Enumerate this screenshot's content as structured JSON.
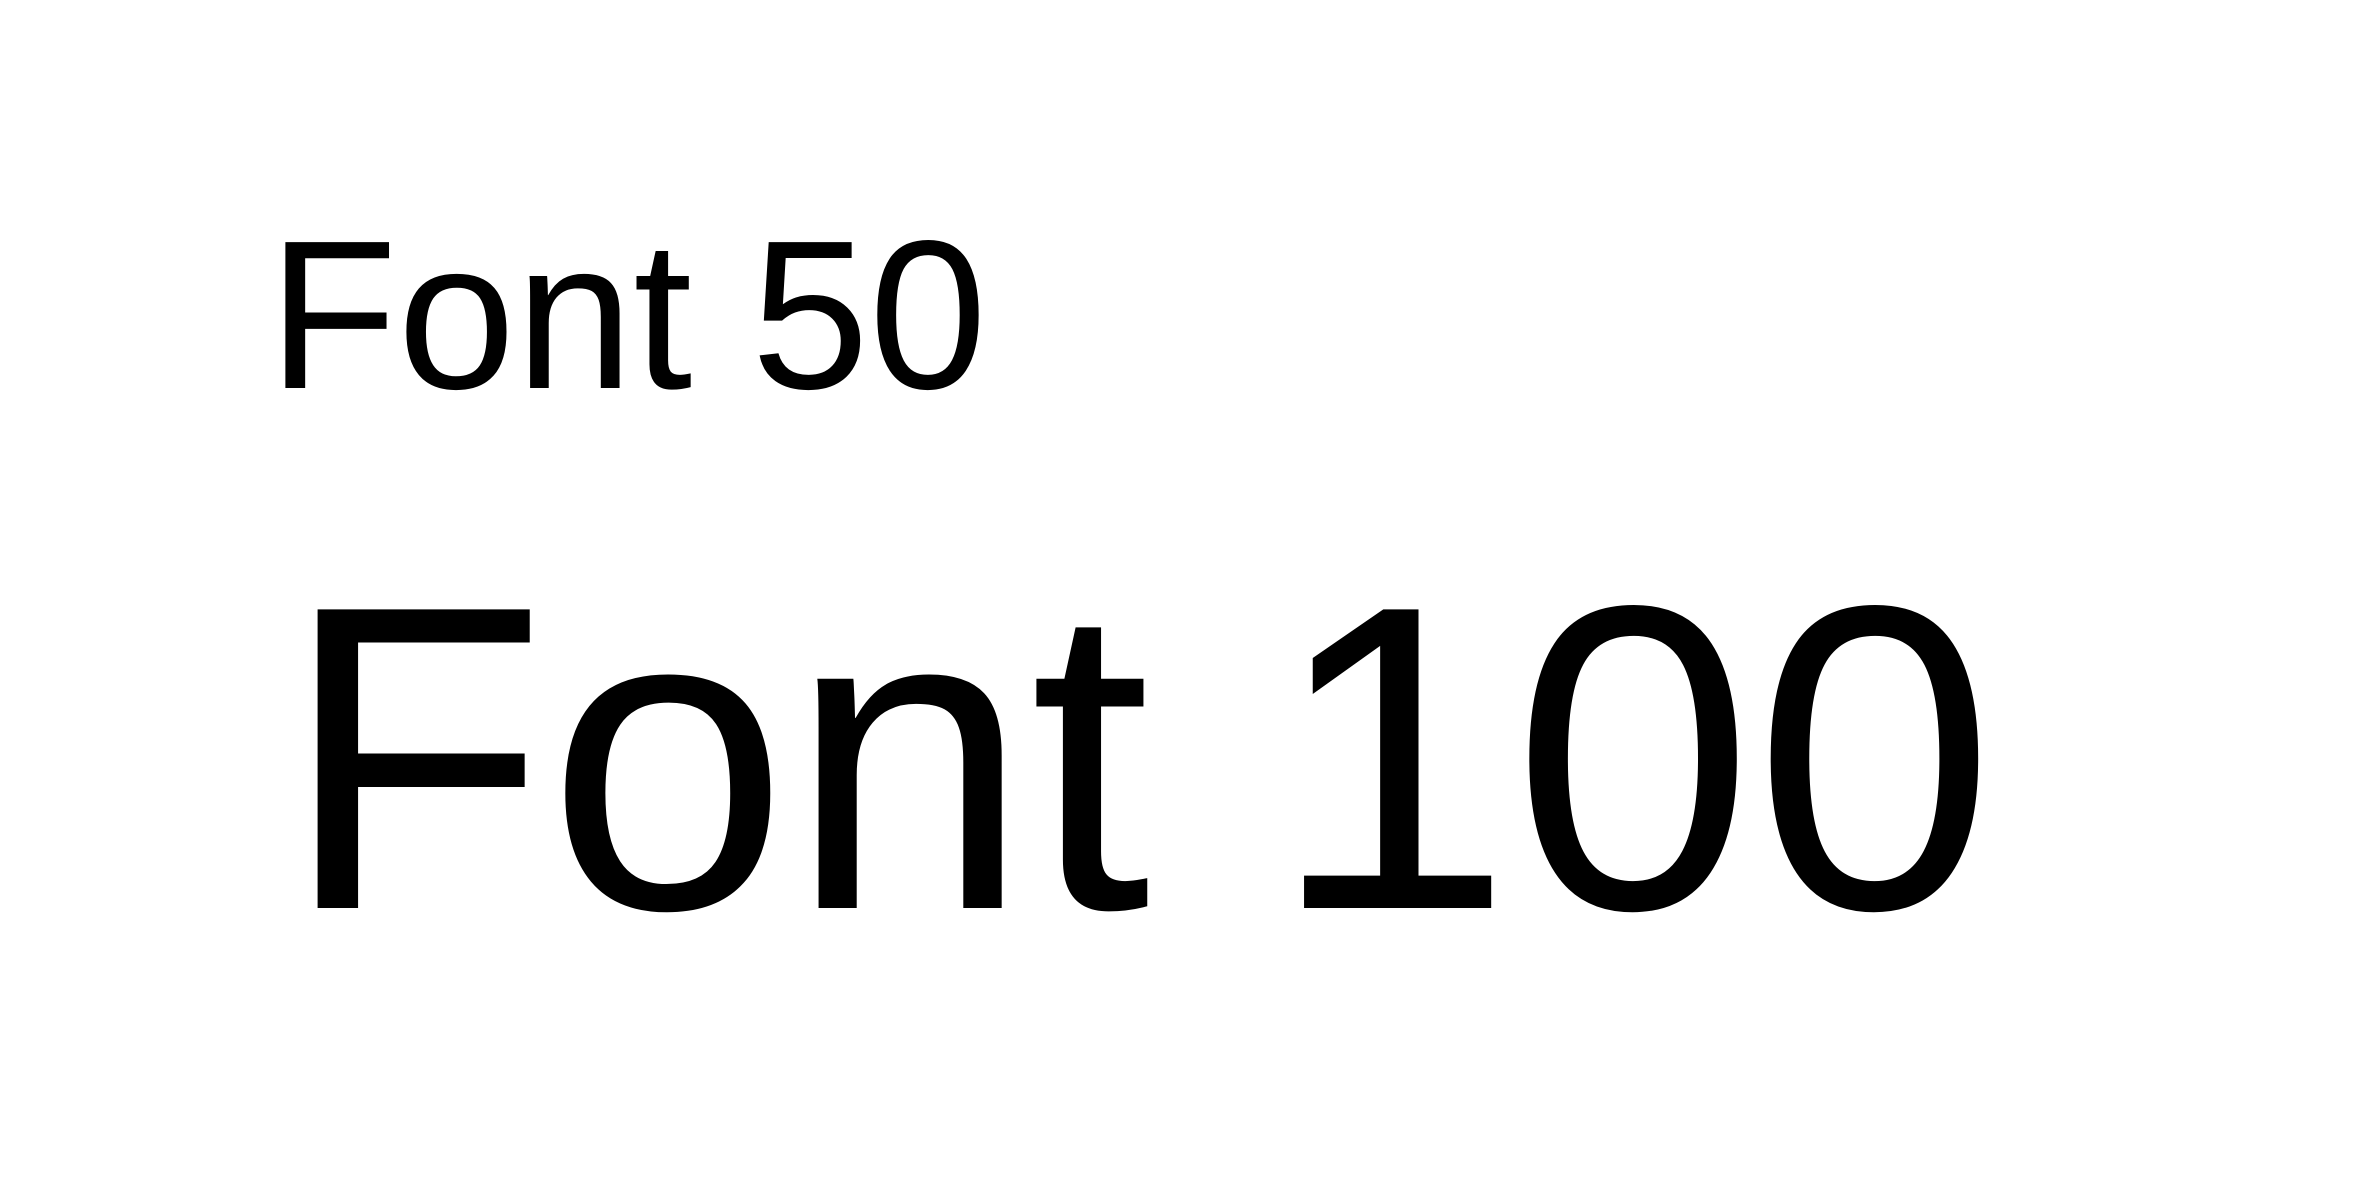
{
  "lines": [
    {
      "text": "Font 50"
    },
    {
      "text": "Font 100"
    }
  ],
  "colors": {
    "background": "#ffffff",
    "text": "#000000"
  }
}
